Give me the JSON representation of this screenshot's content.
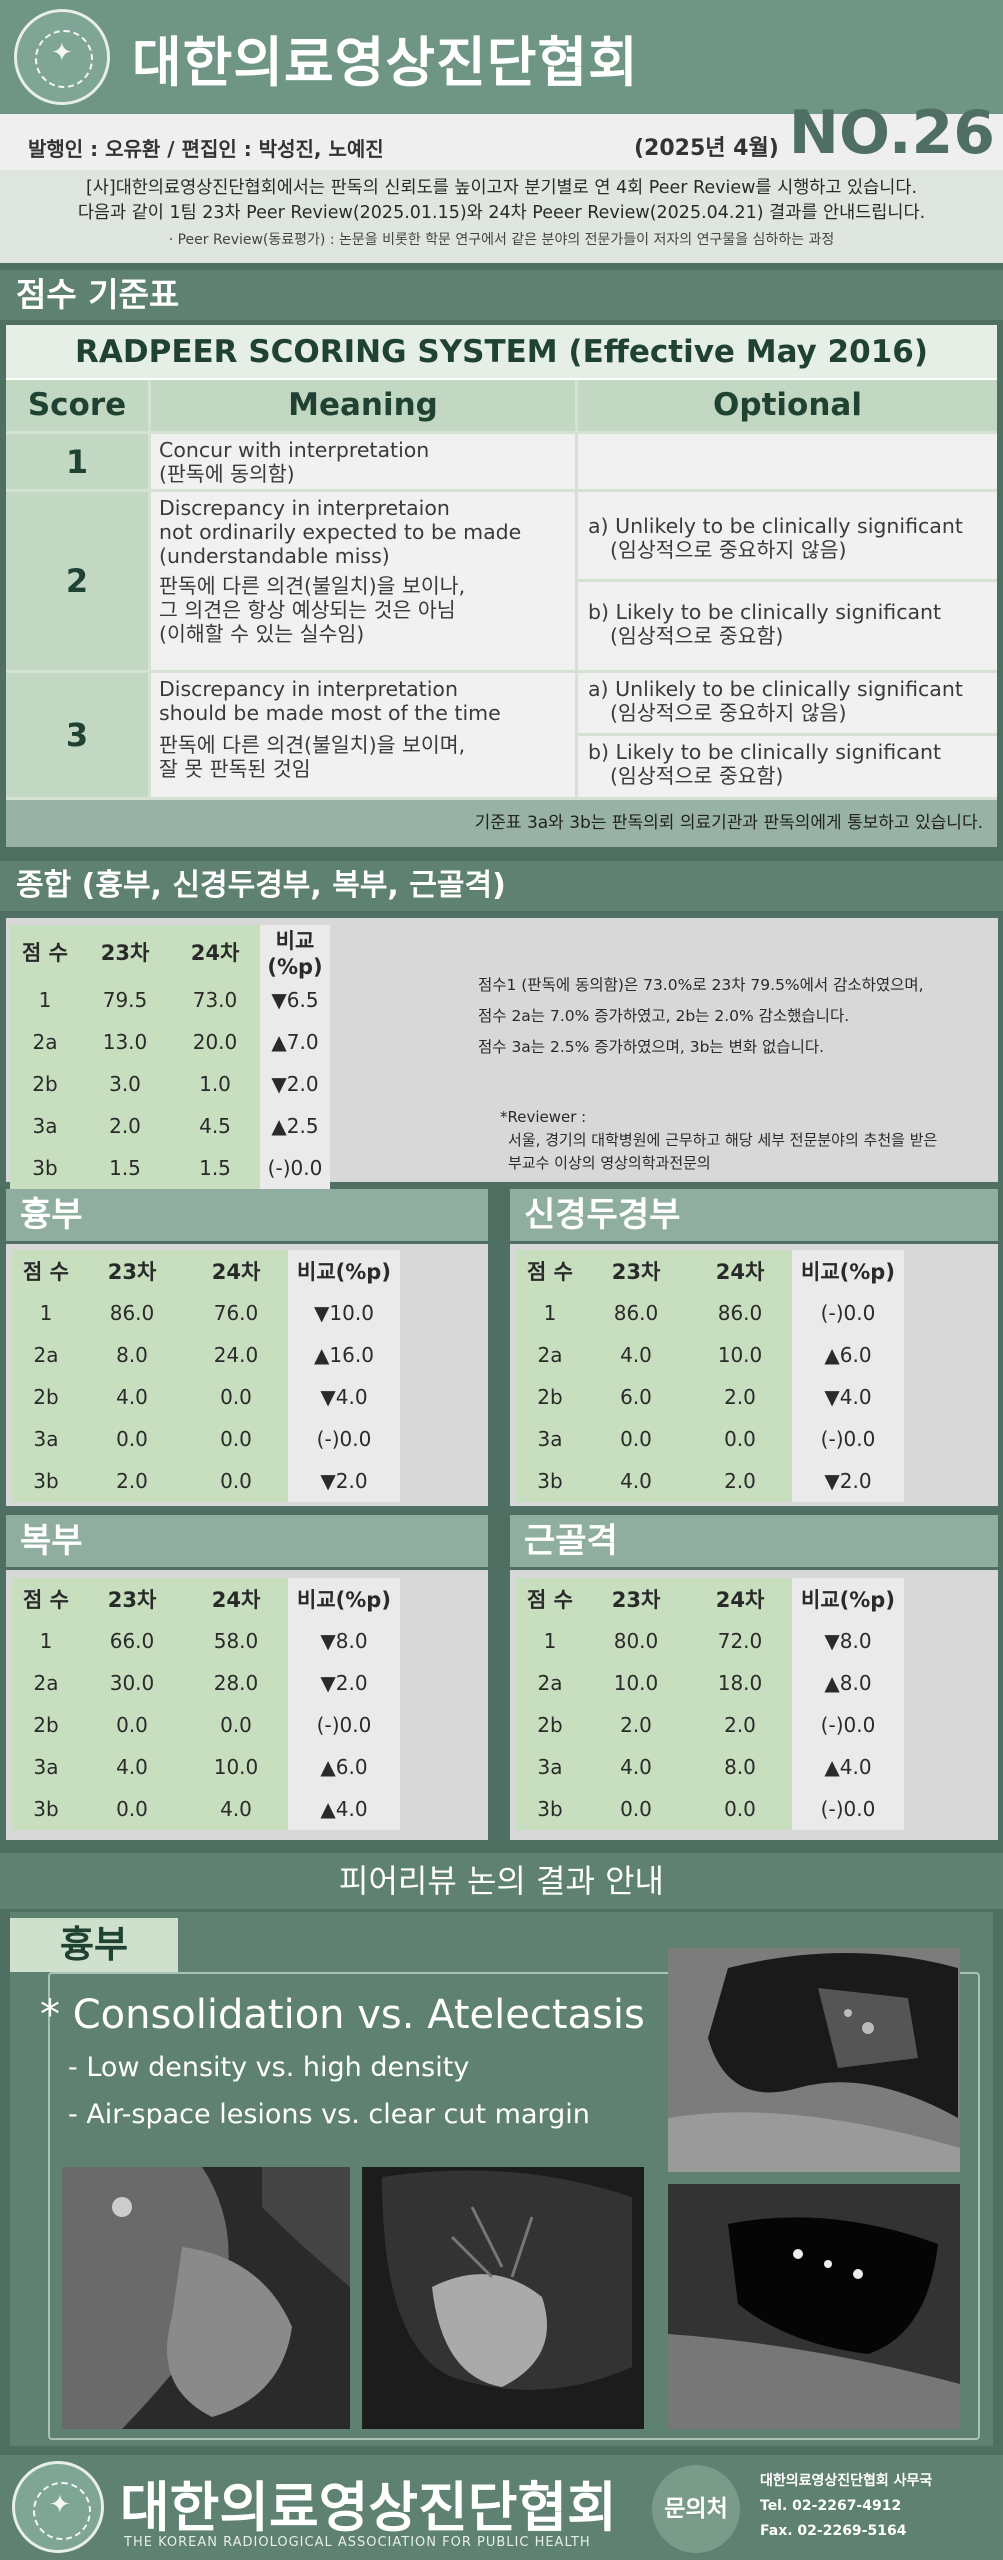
{
  "header": {
    "org": "대한의료영상진단협회"
  },
  "pub": {
    "issuer": "발행인 : 오유환 / 편집인 : 박성진, 노예진",
    "date": "(2025년 4월)",
    "number": "NO.26"
  },
  "intro": {
    "line1": "[사]대한의료영상진단협회에서는 판독의 신뢰도를 높이고자 분기별로 연 4회 Peer Review를 시행하고 있습니다.",
    "line2": "다음과 같이 1팀 23차 Peer Review(2025.01.15)와 24차 Peeer Review(2025.04.21) 결과를 안내드립니다.",
    "line3": "· Peer Review(동료평가) : 논문을 비롯한 학문 연구에서 같은 분야의 전문가들이 저자의 연구물을 심하하는 과정"
  },
  "score_section": {
    "title": "점수 기준표"
  },
  "radpeer": {
    "title": "RADPEER SCORING SYSTEM (Effective May 2016)",
    "headers": [
      "Score",
      "Meaning",
      "Optional"
    ],
    "rows": [
      {
        "score": "1",
        "meaning": [
          "Concur with interpretation",
          "(판독에 동의함)"
        ],
        "optional": []
      },
      {
        "score": "2",
        "meaning": [
          "Discrepancy in interpretaion",
          "not ordinarily expected to be made",
          "(understandable miss)",
          "판독에 다른 의견(불일치)을 보이나,",
          "그 의견은 항상 예상되는 것은 아님",
          "(이해할 수 있는 실수임)"
        ],
        "optional": [
          [
            "a) Unlikely to be clinically significant",
            "(임상적으로 중요하지 않음)"
          ],
          [
            "b) Likely to be clinically significant",
            "(임상적으로 중요함)"
          ]
        ]
      },
      {
        "score": "3",
        "meaning": [
          "Discrepancy in interpretation",
          "should be made most of the time",
          "판독에 다른 의견(불일치)을 보이며,",
          "잘 못 판독된 것임"
        ],
        "optional": [
          [
            "a) Unlikely to be clinically significant",
            "(임상적으로 중요하지 않음)"
          ],
          [
            "b) Likely to be clinically significant",
            "(임상적으로 중요함)"
          ]
        ]
      }
    ],
    "note": "기준표 3a와 3b는 판독의뢰 의료기관과 판독의에게 통보하고 있습니다."
  },
  "overall": {
    "title": "종합 (흉부, 신경두경부, 복부, 근골격)",
    "headers": [
      "점 수",
      "23차",
      "24차",
      "비교(%p)"
    ],
    "rows": [
      {
        "score": "1",
        "r23": "79.5",
        "r24": "73.0",
        "diff": "▼6.5",
        "dir": "dn"
      },
      {
        "score": "2a",
        "r23": "13.0",
        "r24": "20.0",
        "diff": "▲7.0",
        "dir": "up"
      },
      {
        "score": "2b",
        "r23": "3.0",
        "r24": "1.0",
        "diff": "▼2.0",
        "dir": "dn"
      },
      {
        "score": "3a",
        "r23": "2.0",
        "r24": "4.5",
        "diff": "▲2.5",
        "dir": "up"
      },
      {
        "score": "3b",
        "r23": "1.5",
        "r24": "1.5",
        "diff": "(-)0.0",
        "dir": "nc"
      }
    ],
    "summary": [
      "점수1 (판독에 동의함)은 73.0%로 23차 79.5%에서 감소하였으며,",
      "점수 2a는 7.0% 증가하였고, 2b는 2.0% 감소했습니다.",
      "점수 3a는 2.5% 증가하였으며, 3b는 변화 없습니다."
    ],
    "reviewer": [
      "*Reviewer :",
      "서울, 경기의 대학병원에 근무하고 해당 세부 전문분야의 추천을 받은",
      "부교수 이상의 영상의학과전문의"
    ]
  },
  "chest": {
    "title": "흉부",
    "rows": [
      {
        "score": "1",
        "r23": "86.0",
        "r24": "76.0",
        "diff": "▼10.0",
        "dir": "dn"
      },
      {
        "score": "2a",
        "r23": "8.0",
        "r24": "24.0",
        "diff": "▲16.0",
        "dir": "up"
      },
      {
        "score": "2b",
        "r23": "4.0",
        "r24": "0.0",
        "diff": "▼4.0",
        "dir": "dn"
      },
      {
        "score": "3a",
        "r23": "0.0",
        "r24": "0.0",
        "diff": "(-)0.0",
        "dir": "nc"
      },
      {
        "score": "3b",
        "r23": "2.0",
        "r24": "0.0",
        "diff": "▼2.0",
        "dir": "dn"
      }
    ]
  },
  "neuro": {
    "title": "신경두경부",
    "rows": [
      {
        "score": "1",
        "r23": "86.0",
        "r24": "86.0",
        "diff": "(-)0.0",
        "dir": "nc"
      },
      {
        "score": "2a",
        "r23": "4.0",
        "r24": "10.0",
        "diff": "▲6.0",
        "dir": "up"
      },
      {
        "score": "2b",
        "r23": "6.0",
        "r24": "2.0",
        "diff": "▼4.0",
        "dir": "dn"
      },
      {
        "score": "3a",
        "r23": "0.0",
        "r24": "0.0",
        "diff": "(-)0.0",
        "dir": "nc"
      },
      {
        "score": "3b",
        "r23": "4.0",
        "r24": "2.0",
        "diff": "▼2.0",
        "dir": "dn"
      }
    ]
  },
  "abdomen": {
    "title": "복부",
    "rows": [
      {
        "score": "1",
        "r23": "66.0",
        "r24": "58.0",
        "diff": "▼8.0",
        "dir": "dn"
      },
      {
        "score": "2a",
        "r23": "30.0",
        "r24": "28.0",
        "diff": "▼2.0",
        "dir": "dn"
      },
      {
        "score": "2b",
        "r23": "0.0",
        "r24": "0.0",
        "diff": "(-)0.0",
        "dir": "nc"
      },
      {
        "score": "3a",
        "r23": "4.0",
        "r24": "10.0",
        "diff": "▲6.0",
        "dir": "up"
      },
      {
        "score": "3b",
        "r23": "0.0",
        "r24": "4.0",
        "diff": "▲4.0",
        "dir": "up"
      }
    ]
  },
  "msk": {
    "title": "근골격",
    "rows": [
      {
        "score": "1",
        "r23": "80.0",
        "r24": "72.0",
        "diff": "▼8.0",
        "dir": "dn"
      },
      {
        "score": "2a",
        "r23": "10.0",
        "r24": "18.0",
        "diff": "▲8.0",
        "dir": "up"
      },
      {
        "score": "2b",
        "r23": "2.0",
        "r24": "2.0",
        "diff": "(-)0.0",
        "dir": "nc"
      },
      {
        "score": "3a",
        "r23": "4.0",
        "r24": "8.0",
        "diff": "▲4.0",
        "dir": "up"
      },
      {
        "score": "3b",
        "r23": "0.0",
        "r24": "0.0",
        "diff": "(-)0.0",
        "dir": "nc"
      }
    ]
  },
  "discussion": {
    "title": "피어리뷰 논의 결과 안내",
    "tab": "흉부",
    "heading": "* Consolidation vs. Atelectasis",
    "bullets": [
      "- Low density vs. high density",
      "- Air-space lesions vs. clear cut margin"
    ]
  },
  "footer": {
    "org": "대한의료영상진단협회",
    "eng": "THE KOREAN RADIOLOGICAL ASSOCIATION FOR PUBLIC HEALTH",
    "contact_label": "문의처",
    "office": "대한의료영상진단협회 사무국",
    "tel": "Tel. 02-2267-4912",
    "fax": "Fax. 02-2269-5164"
  },
  "colors": {
    "up": "#d23b30",
    "down": "#2a3fc0",
    "band": "#5f8171",
    "accent": "#8fae9f"
  }
}
